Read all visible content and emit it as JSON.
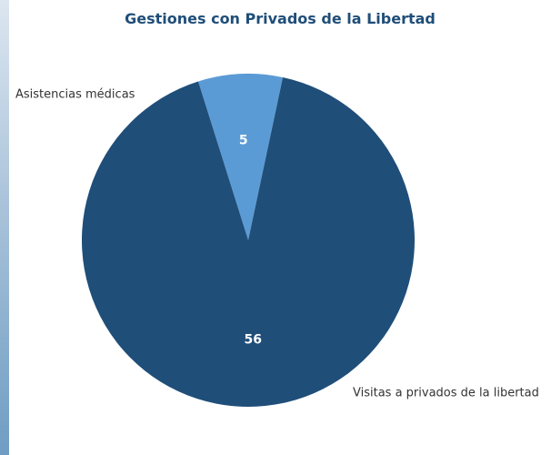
{
  "chart_data": {
    "type": "pie",
    "title": "Gestiones con Privados de la Libertad",
    "categories": [
      "Asistencias médicas",
      "Visitas a privados de la libertad"
    ],
    "values": [
      5,
      56
    ],
    "value_labels": [
      "5",
      "56"
    ],
    "colors": [
      "#5b9bd5",
      "#1f4e79"
    ],
    "label_color": "#ffffff",
    "title_color": "#1f4e79",
    "legend": "none",
    "start": "clockwise"
  }
}
